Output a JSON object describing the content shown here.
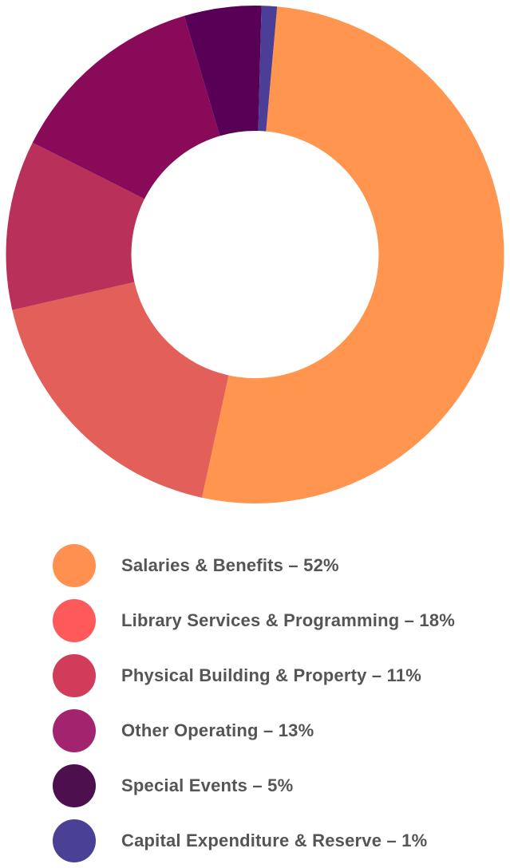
{
  "chart_data": {
    "type": "pie",
    "variant": "donut",
    "legend_position": "bottom",
    "slices": [
      {
        "label": "Salaries & Benefits – 52%",
        "value": 52,
        "slice_color": "#FF954F",
        "legend_color": "#FF9050"
      },
      {
        "label": "Library Services & Programming – 18%",
        "value": 18,
        "slice_color": "#E35F5A",
        "legend_color": "#FE5A5C"
      },
      {
        "label": "Physical Building & Property – 11%",
        "value": 11,
        "slice_color": "#B9305A",
        "legend_color": "#D03C5A"
      },
      {
        "label": "Other Operating – 13%",
        "value": 13,
        "slice_color": "#880A58",
        "legend_color": "#A2246E"
      },
      {
        "label": "Special Events – 5%",
        "value": 5,
        "slice_color": "#570055",
        "legend_color": "#4E0F4E"
      },
      {
        "label": "Capital Expenditure & Reserve – 1%",
        "value": 1,
        "slice_color": "#4B3E96",
        "legend_color": "#4A4096"
      }
    ]
  }
}
